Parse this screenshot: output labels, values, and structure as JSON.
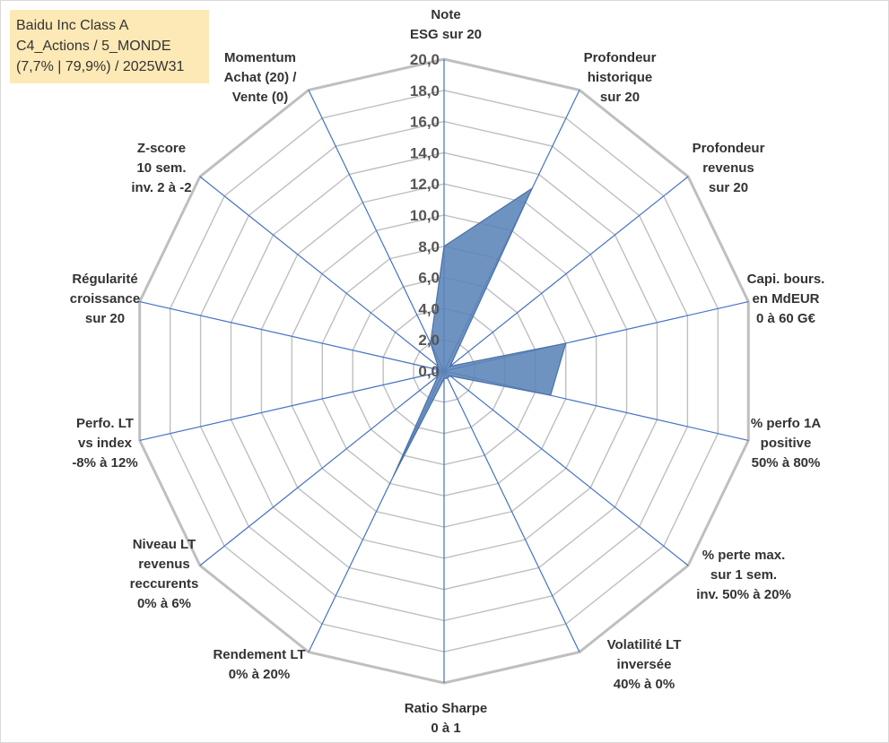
{
  "title_lines": [
    "Baidu Inc Class A",
    "C4_Actions / 5_MONDE",
    "(7,7% | 79,9%) / 2025W31"
  ],
  "chart_data": {
    "type": "radar",
    "r_max": 20,
    "r_step": 2,
    "r_min": 0,
    "ticks": [
      "0,0",
      "2,0",
      "4,0",
      "6,0",
      "8,0",
      "10,0",
      "12,0",
      "14,0",
      "16,0",
      "18,0",
      "20,0"
    ],
    "grid": true,
    "axes": [
      {
        "label": [
          "Note",
          "ESG sur 20"
        ],
        "value": 8.0
      },
      {
        "label": [
          "Profondeur",
          "historique",
          "sur 20"
        ],
        "value": 13.0
      },
      {
        "label": [
          "Profondeur",
          "revenus",
          "sur 20"
        ],
        "value": 0.5
      },
      {
        "label": [
          "Capi. bours.",
          "en MdEUR",
          "0 à 60 G€"
        ],
        "value": 8.0
      },
      {
        "label": [
          "% perfo 1A",
          "positive",
          "50% à 80%"
        ],
        "value": 7.0
      },
      {
        "label": [
          "% perte max.",
          "sur 1 sem.",
          "inv. 50% à 20%"
        ],
        "value": 0.5
      },
      {
        "label": [
          "Volatilité LT",
          "inversée",
          "40% à 0%"
        ],
        "value": 0.5
      },
      {
        "label": [
          "Ratio Sharpe",
          "0 à 1"
        ],
        "value": 0.5
      },
      {
        "label": [
          "Rendement LT",
          "0% à 20%"
        ],
        "value": 7.5
      },
      {
        "label": [
          "Niveau LT",
          "revenus",
          "reccurents",
          "0% à 6%"
        ],
        "value": 0.5
      },
      {
        "label": [
          "Perfo. LT",
          "vs index",
          "-8% à 12%"
        ],
        "value": 0.5
      },
      {
        "label": [
          "Régularité",
          "croissance",
          "sur 20"
        ],
        "value": 0.5
      },
      {
        "label": [
          "Z-score",
          "10 sem.",
          "inv. 2 à -2"
        ],
        "value": 0.5
      },
      {
        "label": [
          "Momentum",
          "Achat (20) /",
          "Vente (0)"
        ],
        "value": 2.0
      }
    ],
    "colors": {
      "grid": "#bfbfbf",
      "spoke": "#4472c4",
      "fill": "#5b84b8",
      "stroke": "#4a72a8"
    }
  }
}
